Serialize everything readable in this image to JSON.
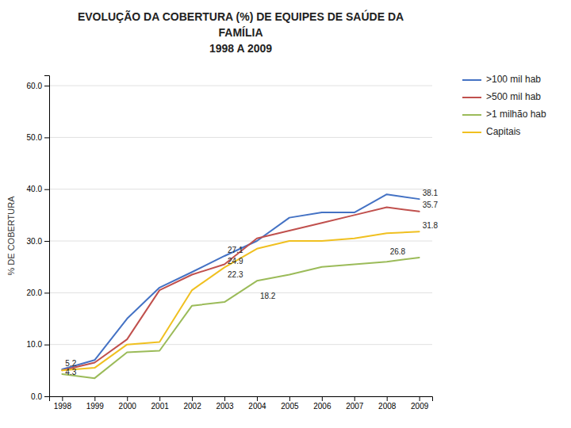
{
  "chart_data": {
    "type": "line",
    "title": "EVOLUÇÃO DA COBERTURA (%) DE EQUIPES DE SAÚDE DA\nFAMÍLIA\n1998 A 2009",
    "y_label": "% DE COBERTURA",
    "x": [
      1998,
      1999,
      2000,
      2001,
      2002,
      2003,
      2004,
      2005,
      2006,
      2007,
      2008,
      2009
    ],
    "xlim": [
      1997.6,
      2009.4
    ],
    "xticks": [
      1998,
      1999,
      2000,
      2001,
      2002,
      2003,
      2004,
      2005,
      2006,
      2007,
      2008,
      2009
    ],
    "ylim": [
      0.0,
      62.0
    ],
    "yticks": [
      {
        "value": 0.0,
        "label": "0.0"
      },
      {
        "value": 10.0,
        "label": "10.0"
      },
      {
        "value": 20.0,
        "label": "20.0"
      },
      {
        "value": 30.0,
        "label": "30.0"
      },
      {
        "value": 40.0,
        "label": "40.0"
      },
      {
        "value": 50.0,
        "label": "50.0"
      },
      {
        "value": 60.0,
        "label": "60.0"
      }
    ],
    "grid": "y",
    "legend": "top-right",
    "series": [
      {
        "name": ">100 mil hab",
        "color": "#4472C4",
        "values": [
          5.2,
          7.0,
          15.0,
          21.0,
          24.0,
          27.1,
          30.0,
          34.5,
          35.5,
          35.5,
          39.0,
          38.1
        ]
      },
      {
        "name": ">500 mil hab",
        "color": "#C0504D",
        "values": [
          5.0,
          6.5,
          11.0,
          20.5,
          23.5,
          25.5,
          30.5,
          32.0,
          33.5,
          35.0,
          36.5,
          35.7
        ]
      },
      {
        "name": ">1 milhão hab",
        "color": "#9BBB59",
        "values": [
          4.3,
          3.5,
          8.5,
          8.8,
          17.5,
          18.2,
          22.3,
          23.5,
          25.0,
          25.5,
          26.0,
          26.8
        ]
      },
      {
        "name": "Capitais",
        "color": "#F0C020",
        "values": [
          5.0,
          5.5,
          10.0,
          10.5,
          20.5,
          24.9,
          28.5,
          30.0,
          30.0,
          30.5,
          31.5,
          31.8
        ]
      }
    ],
    "annotations": [
      {
        "text": "5.2",
        "x": 1998,
        "y": 5.2
      },
      {
        "text": "4.3",
        "x": 1998,
        "y": 4.3
      },
      {
        "text": "27.1",
        "x": 2003,
        "y": 27.1
      },
      {
        "text": "24.9",
        "x": 2003,
        "y": 24.9
      },
      {
        "text": "22.3",
        "x": 2003,
        "y": 22.3
      },
      {
        "text": "18.2",
        "x": 2004,
        "y": 18.2
      },
      {
        "text": "38.1",
        "x": 2009,
        "y": 38.1
      },
      {
        "text": "35.7",
        "x": 2009,
        "y": 35.7
      },
      {
        "text": "31.8",
        "x": 2009,
        "y": 31.8
      },
      {
        "text": "26.8",
        "x": 2008,
        "y": 26.8
      }
    ]
  }
}
